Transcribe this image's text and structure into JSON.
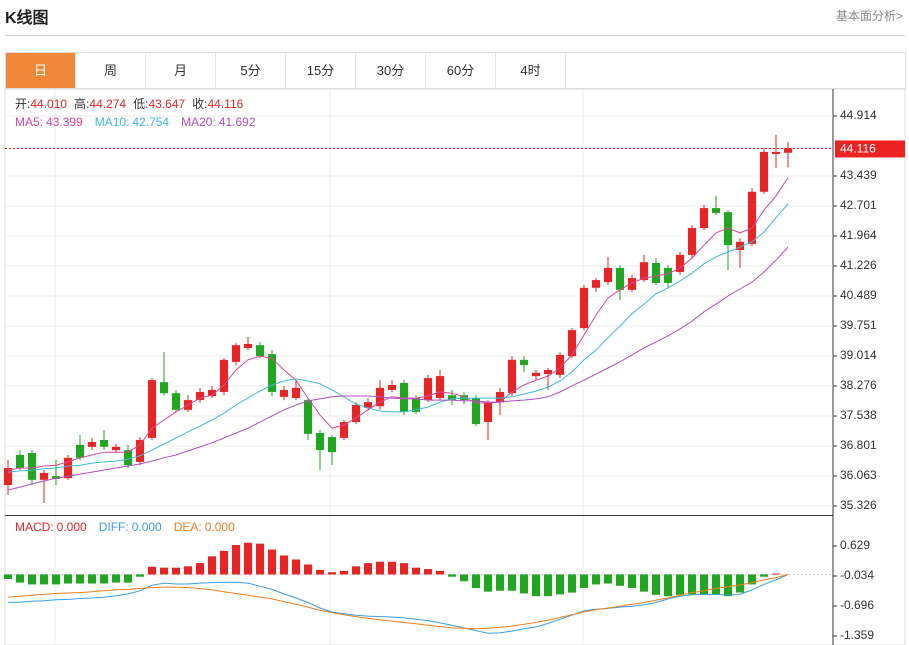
{
  "header": {
    "title": "K线图",
    "link": "基本面分析>"
  },
  "tabs": {
    "items": [
      "日",
      "周",
      "月",
      "5分",
      "15分",
      "30分",
      "60分",
      "4时"
    ],
    "active": 0
  },
  "ohlc_info": [
    {
      "label": "开:",
      "value": "44.010"
    },
    {
      "label": "高:",
      "value": "44.274"
    },
    {
      "label": "低:",
      "value": "43.647"
    },
    {
      "label": "收:",
      "value": "44.116"
    }
  ],
  "chart_data": [
    {
      "type": "candlestick",
      "up_color": "#ee2222",
      "down_color": "#1ea81e",
      "last_price": 44.116,
      "price_line_color": "#ee2222",
      "ylim": [
        35.105,
        45.553
      ],
      "yticks": [
        44.914,
        43.439,
        42.701,
        41.964,
        41.226,
        40.489,
        39.751,
        39.014,
        38.276,
        37.538,
        36.801,
        36.063,
        35.326
      ],
      "grid": true,
      "open": [
        35.84,
        36.58,
        36.63,
        35.97,
        36.06,
        36.01,
        36.83,
        36.78,
        36.95,
        36.7,
        36.7,
        36.41,
        37.0,
        38.37,
        38.1,
        37.69,
        37.93,
        38.03,
        38.13,
        38.87,
        39.21,
        39.28,
        39.06,
        38.01,
        37.98,
        37.93,
        37.12,
        37.02,
        37.0,
        37.39,
        37.74,
        37.78,
        38.18,
        38.35,
        37.98,
        37.93,
        37.98,
        38.05,
        38.05,
        37.98,
        37.39,
        37.88,
        38.1,
        38.92,
        38.52,
        38.57,
        38.55,
        39.01,
        39.7,
        40.69,
        40.83,
        41.18,
        40.64,
        40.88,
        41.3,
        41.18,
        41.08,
        41.5,
        42.16,
        42.65,
        42.55,
        41.62,
        41.77,
        43.05,
        43.98,
        44.01
      ],
      "high": [
        36.46,
        36.7,
        36.7,
        36.21,
        36.46,
        36.58,
        37.07,
        37.0,
        37.19,
        36.85,
        36.83,
        37.02,
        38.47,
        39.11,
        38.18,
        38.05,
        38.23,
        38.28,
        38.96,
        39.33,
        39.48,
        39.36,
        39.16,
        38.28,
        38.42,
        37.98,
        37.19,
        37.07,
        37.44,
        37.88,
        37.98,
        38.42,
        38.42,
        38.42,
        38.05,
        38.55,
        38.67,
        38.18,
        38.13,
        38.05,
        37.93,
        38.23,
        39.01,
        39.01,
        38.67,
        38.72,
        39.11,
        39.7,
        40.76,
        40.93,
        41.45,
        41.25,
        41.01,
        41.5,
        41.42,
        41.25,
        41.57,
        42.23,
        42.73,
        42.95,
        42.6,
        41.91,
        43.14,
        44.13,
        44.45,
        44.274
      ],
      "low": [
        35.6,
        36.21,
        35.84,
        35.4,
        35.84,
        35.97,
        36.46,
        36.7,
        36.7,
        36.65,
        36.26,
        36.33,
        36.95,
        38.05,
        37.64,
        37.64,
        37.86,
        37.98,
        38.05,
        38.79,
        39.16,
        38.96,
        38.03,
        37.93,
        37.93,
        36.95,
        36.21,
        36.33,
        36.95,
        37.34,
        37.69,
        37.69,
        38.13,
        37.56,
        37.59,
        37.88,
        37.93,
        37.81,
        37.83,
        37.29,
        36.95,
        37.56,
        38.03,
        38.62,
        38.42,
        38.18,
        38.47,
        38.96,
        39.65,
        40.59,
        40.76,
        40.39,
        40.59,
        40.83,
        40.76,
        40.69,
        41.01,
        41.42,
        42.11,
        42.48,
        41.13,
        41.18,
        41.72,
        43.0,
        43.64,
        43.647
      ],
      "close": [
        36.26,
        36.26,
        35.97,
        36.14,
        35.99,
        36.51,
        36.51,
        36.9,
        36.78,
        36.78,
        36.33,
        36.95,
        38.42,
        38.1,
        37.69,
        37.93,
        38.13,
        38.18,
        38.92,
        39.28,
        39.31,
        39.01,
        38.13,
        38.18,
        38.23,
        37.1,
        36.7,
        36.65,
        37.39,
        37.81,
        37.88,
        38.23,
        38.3,
        37.64,
        37.64,
        38.47,
        38.52,
        37.93,
        37.93,
        37.34,
        37.86,
        38.13,
        38.92,
        38.79,
        38.6,
        38.67,
        39.04,
        39.65,
        40.69,
        40.88,
        41.18,
        40.64,
        40.93,
        41.32,
        40.81,
        40.81,
        41.5,
        42.16,
        42.65,
        42.53,
        41.74,
        41.82,
        43.05,
        44.03,
        44.03,
        44.116
      ],
      "series": [
        {
          "name": "MA5:",
          "value_label": "43.399",
          "color": "#e0449a",
          "values": [
            36.21,
            36.26,
            36.26,
            36.31,
            36.33,
            36.41,
            36.51,
            36.58,
            36.65,
            36.65,
            36.65,
            36.83,
            37.24,
            37.44,
            37.64,
            37.81,
            37.98,
            38.05,
            38.3,
            38.67,
            38.92,
            39.01,
            38.96,
            38.67,
            38.42,
            37.98,
            37.56,
            37.24,
            37.32,
            37.49,
            37.69,
            37.88,
            38.01,
            37.98,
            37.98,
            38.03,
            38.13,
            38.1,
            38.01,
            37.86,
            37.86,
            37.88,
            38.13,
            38.3,
            38.42,
            38.52,
            38.72,
            39.04,
            39.53,
            40.02,
            40.44,
            40.64,
            40.81,
            40.93,
            40.98,
            41.03,
            41.18,
            41.42,
            41.74,
            42.04,
            42.16,
            42.04,
            42.16,
            42.6,
            42.95,
            43.399
          ]
        },
        {
          "name": "MA10:",
          "value_label": "42.754",
          "color": "#3cbcd8",
          "values": [
            36.16,
            36.19,
            36.21,
            36.24,
            36.26,
            36.31,
            36.33,
            36.38,
            36.41,
            36.43,
            36.48,
            36.56,
            36.7,
            36.85,
            37.0,
            37.15,
            37.29,
            37.44,
            37.61,
            37.81,
            37.98,
            38.15,
            38.3,
            38.4,
            38.45,
            38.4,
            38.33,
            38.18,
            38.01,
            37.83,
            37.74,
            37.66,
            37.64,
            37.64,
            37.69,
            37.76,
            37.88,
            37.96,
            37.98,
            37.98,
            37.98,
            37.98,
            38.01,
            38.08,
            38.15,
            38.25,
            38.4,
            38.62,
            38.92,
            39.16,
            39.46,
            39.75,
            40.05,
            40.29,
            40.54,
            40.69,
            40.86,
            41.05,
            41.28,
            41.45,
            41.57,
            41.69,
            41.82,
            42.06,
            42.41,
            42.754
          ]
        },
        {
          "name": "MA20:",
          "value_label": "41.692",
          "color": "#b24fc4",
          "values": [
            35.72,
            35.79,
            35.87,
            35.94,
            36.01,
            36.06,
            36.11,
            36.16,
            36.21,
            36.26,
            36.31,
            36.36,
            36.43,
            36.51,
            36.58,
            36.68,
            36.78,
            36.88,
            37.0,
            37.12,
            37.24,
            37.39,
            37.54,
            37.69,
            37.81,
            37.91,
            37.96,
            38.01,
            38.03,
            38.03,
            38.03,
            38.01,
            37.98,
            37.96,
            37.96,
            37.93,
            37.93,
            37.93,
            37.91,
            37.91,
            37.88,
            37.88,
            37.91,
            37.93,
            37.96,
            38.01,
            38.13,
            38.28,
            38.42,
            38.57,
            38.72,
            38.87,
            39.04,
            39.21,
            39.36,
            39.51,
            39.68,
            39.87,
            40.1,
            40.29,
            40.49,
            40.66,
            40.83,
            41.08,
            41.37,
            41.692
          ]
        }
      ]
    },
    {
      "type": "macd",
      "up_color": "#ee2222",
      "down_color": "#1ea81e",
      "ylim": [
        -1.558,
        1.269
      ],
      "yticks": [
        0.629,
        -0.034,
        -0.696,
        -1.359
      ],
      "series": [
        {
          "name": "MACD:",
          "value_label": "0.000",
          "color": "#ee2222",
          "kind": "bar",
          "values": [
            -0.1,
            -0.18,
            -0.22,
            -0.22,
            -0.22,
            -0.2,
            -0.2,
            -0.2,
            -0.2,
            -0.18,
            -0.18,
            -0.05,
            0.17,
            0.15,
            0.15,
            0.18,
            0.25,
            0.4,
            0.52,
            0.65,
            0.7,
            0.68,
            0.55,
            0.42,
            0.33,
            0.22,
            0.1,
            0.05,
            0.08,
            0.18,
            0.25,
            0.28,
            0.28,
            0.25,
            0.15,
            0.12,
            0.08,
            -0.05,
            -0.15,
            -0.3,
            -0.38,
            -0.36,
            -0.36,
            -0.42,
            -0.48,
            -0.48,
            -0.44,
            -0.4,
            -0.3,
            -0.22,
            -0.2,
            -0.25,
            -0.3,
            -0.38,
            -0.45,
            -0.48,
            -0.45,
            -0.44,
            -0.45,
            -0.45,
            -0.48,
            -0.4,
            -0.22,
            -0.05,
            0.02,
            0
          ]
        },
        {
          "name": "DIFF:",
          "value_label": "0.000",
          "color": "#3a9fe6",
          "kind": "line",
          "values": [
            -0.62,
            -0.61,
            -0.59,
            -0.58,
            -0.56,
            -0.55,
            -0.53,
            -0.52,
            -0.5,
            -0.47,
            -0.43,
            -0.36,
            -0.24,
            -0.19,
            -0.21,
            -0.21,
            -0.19,
            -0.18,
            -0.17,
            -0.17,
            -0.19,
            -0.26,
            -0.33,
            -0.43,
            -0.52,
            -0.62,
            -0.74,
            -0.83,
            -0.87,
            -0.9,
            -0.92,
            -0.93,
            -0.94,
            -0.96,
            -0.99,
            -1.02,
            -1.07,
            -1.12,
            -1.18,
            -1.24,
            -1.3,
            -1.29,
            -1.25,
            -1.2,
            -1.16,
            -1.08,
            -0.99,
            -0.9,
            -0.8,
            -0.77,
            -0.75,
            -0.72,
            -0.7,
            -0.67,
            -0.62,
            -0.54,
            -0.48,
            -0.45,
            -0.44,
            -0.44,
            -0.46,
            -0.44,
            -0.34,
            -0.22,
            -0.12,
            0
          ]
        },
        {
          "name": "DEA:",
          "value_label": "0.000",
          "color": "#f07f1e",
          "kind": "line",
          "values": [
            -0.5,
            -0.48,
            -0.46,
            -0.44,
            -0.42,
            -0.41,
            -0.4,
            -0.38,
            -0.36,
            -0.34,
            -0.33,
            -0.31,
            -0.29,
            -0.28,
            -0.28,
            -0.29,
            -0.31,
            -0.34,
            -0.38,
            -0.42,
            -0.46,
            -0.5,
            -0.54,
            -0.6,
            -0.66,
            -0.72,
            -0.79,
            -0.84,
            -0.89,
            -0.93,
            -0.97,
            -1.0,
            -1.03,
            -1.06,
            -1.09,
            -1.12,
            -1.15,
            -1.18,
            -1.19,
            -1.2,
            -1.19,
            -1.17,
            -1.14,
            -1.1,
            -1.06,
            -1.01,
            -0.95,
            -0.89,
            -0.83,
            -0.78,
            -0.74,
            -0.7,
            -0.66,
            -0.62,
            -0.57,
            -0.52,
            -0.46,
            -0.4,
            -0.36,
            -0.31,
            -0.27,
            -0.23,
            -0.18,
            -0.12,
            -0.07,
            0
          ]
        }
      ]
    }
  ]
}
